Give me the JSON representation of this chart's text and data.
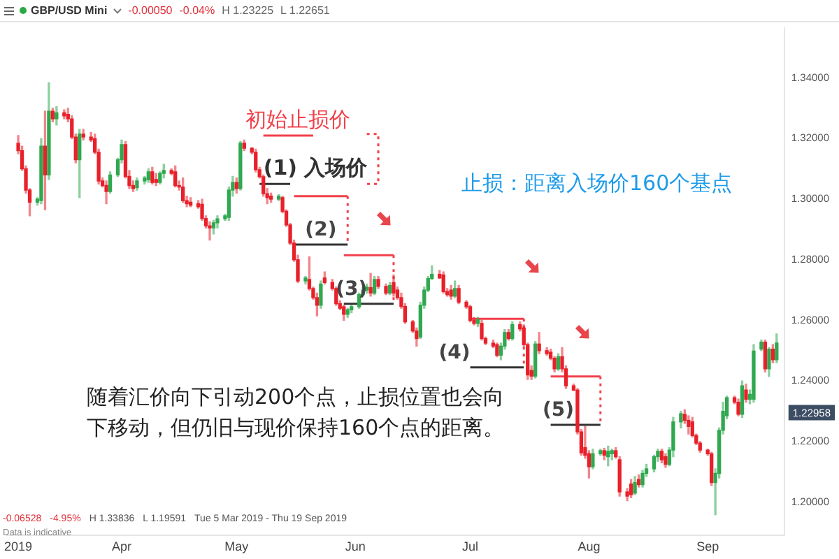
{
  "chart_data": {
    "type": "candlestick",
    "title": "GBP/USD Mini",
    "annotations": [
      {
        "text": "初始止损价",
        "x": "2019-05-17",
        "y": 1.321
      },
      {
        "text": "(1) 入场价",
        "x": "2019-05-08",
        "y": 1.305
      },
      {
        "text": "(2)",
        "x": "2019-05-23",
        "y": 1.285
      },
      {
        "text": "(3)",
        "x": "2019-05-31",
        "y": 1.2655
      },
      {
        "text": "(4)",
        "x": "2019-07-01",
        "y": 1.2445
      },
      {
        "text": "(5)",
        "x": "2019-07-24",
        "y": 1.2255
      },
      {
        "text": "1.22958",
        "y": 1.22958
      },
      "止损：距离入场价160个基点",
      "随着汇价向下引动200个点，止损位置也会向下移动，但仍旧与现价保持160个点的距离。",
      "-0.00050",
      "-0.04%",
      "H 1.23225",
      "L 1.22651",
      "-0.06528",
      "-4.95%",
      "H 1.33836",
      "L 1.19591",
      "Tue 5 Mar 2019 - Thu 19 Sep 2019",
      "Data is indicative"
    ],
    "xlim": [
      "2019-03-02",
      "2019-09-21"
    ],
    "xticks": [
      {
        "value": "2019-03-05",
        "label": "2019"
      },
      {
        "value": "2019-04-01",
        "label": "Apr"
      },
      {
        "value": "2019-05-01",
        "label": "May"
      },
      {
        "value": "2019-06-01",
        "label": "Jun"
      },
      {
        "value": "2019-07-01",
        "label": "Jul"
      },
      {
        "value": "2019-08-01",
        "label": "Aug"
      },
      {
        "value": "2019-09-01",
        "label": "Sep"
      }
    ],
    "ylim": [
      1.189,
      1.3565
    ],
    "yticks": [
      {
        "value": 1.2,
        "label": "1.20000"
      },
      {
        "value": 1.22,
        "label": "1.22000"
      },
      {
        "value": 1.24,
        "label": "1.24000"
      },
      {
        "value": 1.26,
        "label": "1.26000"
      },
      {
        "value": 1.28,
        "label": "1.28000"
      },
      {
        "value": 1.3,
        "label": "1.30000"
      },
      {
        "value": 1.32,
        "label": "1.32000"
      },
      {
        "value": 1.34,
        "label": "1.34000"
      }
    ],
    "x": [
      "2019-03-05",
      "2019-03-06",
      "2019-03-07",
      "2019-03-08",
      "2019-03-10",
      "2019-03-11",
      "2019-03-12",
      "2019-03-13",
      "2019-03-14",
      "2019-03-15",
      "2019-03-17",
      "2019-03-18",
      "2019-03-19",
      "2019-03-20",
      "2019-03-21",
      "2019-03-22",
      "2019-03-24",
      "2019-03-25",
      "2019-03-26",
      "2019-03-27",
      "2019-03-28",
      "2019-03-29",
      "2019-03-31",
      "2019-04-01",
      "2019-04-02",
      "2019-04-03",
      "2019-04-04",
      "2019-04-05",
      "2019-04-07",
      "2019-04-08",
      "2019-04-09",
      "2019-04-10",
      "2019-04-11",
      "2019-04-12",
      "2019-04-14",
      "2019-04-15",
      "2019-04-16",
      "2019-04-17",
      "2019-04-18",
      "2019-04-19",
      "2019-04-21",
      "2019-04-22",
      "2019-04-23",
      "2019-04-24",
      "2019-04-25",
      "2019-04-26",
      "2019-04-28",
      "2019-04-29",
      "2019-04-30",
      "2019-05-01",
      "2019-05-02",
      "2019-05-03",
      "2019-05-05",
      "2019-05-06",
      "2019-05-07",
      "2019-05-08",
      "2019-05-09",
      "2019-05-10",
      "2019-05-12",
      "2019-05-13",
      "2019-05-14",
      "2019-05-15",
      "2019-05-16",
      "2019-05-17",
      "2019-05-19",
      "2019-05-20",
      "2019-05-21",
      "2019-05-22",
      "2019-05-23",
      "2019-05-24",
      "2019-05-26",
      "2019-05-27",
      "2019-05-28",
      "2019-05-29",
      "2019-05-30",
      "2019-05-31",
      "2019-06-02",
      "2019-06-03",
      "2019-06-04",
      "2019-06-05",
      "2019-06-06",
      "2019-06-07",
      "2019-06-09",
      "2019-06-10",
      "2019-06-11",
      "2019-06-12",
      "2019-06-13",
      "2019-06-14",
      "2019-06-16",
      "2019-06-17",
      "2019-06-18",
      "2019-06-19",
      "2019-06-20",
      "2019-06-21",
      "2019-06-23",
      "2019-06-24",
      "2019-06-25",
      "2019-06-26",
      "2019-06-27",
      "2019-06-28",
      "2019-06-30",
      "2019-07-01",
      "2019-07-02",
      "2019-07-03",
      "2019-07-04",
      "2019-07-05",
      "2019-07-07",
      "2019-07-08",
      "2019-07-09",
      "2019-07-10",
      "2019-07-11",
      "2019-07-12",
      "2019-07-14",
      "2019-07-15",
      "2019-07-16",
      "2019-07-17",
      "2019-07-18",
      "2019-07-19",
      "2019-07-21",
      "2019-07-22",
      "2019-07-23",
      "2019-07-24",
      "2019-07-25",
      "2019-07-26",
      "2019-07-28",
      "2019-07-29",
      "2019-07-30",
      "2019-07-31",
      "2019-08-01",
      "2019-08-02",
      "2019-08-04",
      "2019-08-05",
      "2019-08-06",
      "2019-08-07",
      "2019-08-08",
      "2019-08-09",
      "2019-08-11",
      "2019-08-12",
      "2019-08-13",
      "2019-08-14",
      "2019-08-15",
      "2019-08-16",
      "2019-08-18",
      "2019-08-19",
      "2019-08-20",
      "2019-08-21",
      "2019-08-22",
      "2019-08-23",
      "2019-08-25",
      "2019-08-26",
      "2019-08-27",
      "2019-08-28",
      "2019-08-29",
      "2019-08-30",
      "2019-09-01",
      "2019-09-02",
      "2019-09-03",
      "2019-09-04",
      "2019-09-05",
      "2019-09-06",
      "2019-09-08",
      "2019-09-09",
      "2019-09-10",
      "2019-09-11",
      "2019-09-12",
      "2019-09-13",
      "2019-09-15",
      "2019-09-16",
      "2019-09-17",
      "2019-09-18",
      "2019-09-19"
    ],
    "ohlc": [
      [
        1.3184,
        1.321,
        1.315,
        1.316
      ],
      [
        1.316,
        1.3175,
        1.3095,
        1.31
      ],
      [
        1.31,
        1.311,
        1.302,
        1.303
      ],
      [
        1.303,
        1.3035,
        1.2945,
        1.299
      ],
      [
        1.299,
        1.3005,
        1.298,
        1.3
      ],
      [
        1.2995,
        1.32,
        1.2985,
        1.3175
      ],
      [
        1.3175,
        1.329,
        1.2965,
        1.308
      ],
      [
        1.308,
        1.3384,
        1.3065,
        1.329
      ],
      [
        1.329,
        1.33,
        1.3255,
        1.3265
      ],
      [
        1.3265,
        1.3305,
        1.3245,
        1.3285
      ],
      [
        1.3285,
        1.3295,
        1.3265,
        1.3275
      ],
      [
        1.328,
        1.33,
        1.3255,
        1.3265
      ],
      [
        1.3265,
        1.3275,
        1.32,
        1.3205
      ],
      [
        1.3205,
        1.3215,
        1.312,
        1.313
      ],
      [
        1.313,
        1.323,
        1.3005,
        1.3215
      ],
      [
        1.3215,
        1.323,
        1.3195,
        1.3205
      ],
      [
        1.3205,
        1.322,
        1.319,
        1.3195
      ],
      [
        1.32,
        1.3215,
        1.315,
        1.3155
      ],
      [
        1.3155,
        1.3165,
        1.305,
        1.306
      ],
      [
        1.306,
        1.307,
        1.304,
        1.3045
      ],
      [
        1.3045,
        1.306,
        1.2985,
        1.3025
      ],
      [
        1.3025,
        1.309,
        1.302,
        1.308
      ],
      [
        1.308,
        1.3135,
        1.3075,
        1.313
      ],
      [
        1.313,
        1.3195,
        1.312,
        1.318
      ],
      [
        1.318,
        1.319,
        1.307,
        1.3075
      ],
      [
        1.3075,
        1.3095,
        1.3035,
        1.3045
      ],
      [
        1.3045,
        1.306,
        1.3025,
        1.3035
      ],
      [
        1.3038,
        1.307,
        1.303,
        1.306
      ],
      [
        1.306,
        1.3075,
        1.305,
        1.307
      ],
      [
        1.3064,
        1.31,
        1.3055,
        1.309
      ],
      [
        1.309,
        1.3105,
        1.305,
        1.3055
      ],
      [
        1.3065,
        1.3085,
        1.3045,
        1.3055
      ],
      [
        1.3055,
        1.309,
        1.305,
        1.3085
      ],
      [
        1.3085,
        1.3115,
        1.307,
        1.3095
      ],
      [
        1.3095,
        1.31,
        1.308,
        1.3085
      ],
      [
        1.309,
        1.311,
        1.304,
        1.3045
      ],
      [
        1.3045,
        1.306,
        1.303,
        1.304
      ],
      [
        1.304,
        1.307,
        1.299,
        1.2995
      ],
      [
        1.2995,
        1.301,
        1.2975,
        1.2985
      ],
      [
        1.299,
        1.3005,
        1.2975,
        1.298
      ],
      [
        1.2985,
        1.2995,
        1.297,
        1.2975
      ],
      [
        1.2983,
        1.3,
        1.293,
        1.2936
      ],
      [
        1.2936,
        1.2945,
        1.2905,
        1.2912
      ],
      [
        1.2912,
        1.2925,
        1.2865,
        1.2905
      ],
      [
        1.2905,
        1.293,
        1.2885,
        1.2922
      ],
      [
        1.2922,
        1.2945,
        1.2905,
        1.2935
      ],
      [
        1.2935,
        1.295,
        1.293,
        1.2945
      ],
      [
        1.294,
        1.304,
        1.293,
        1.303
      ],
      [
        1.303,
        1.3075,
        1.301,
        1.3055
      ],
      [
        1.3055,
        1.307,
        1.302,
        1.3035
      ],
      [
        1.3035,
        1.319,
        1.303,
        1.3185
      ],
      [
        1.3185,
        1.3195,
        1.316,
        1.3168
      ],
      [
        1.3168,
        1.317,
        1.315,
        1.3155
      ],
      [
        1.3155,
        1.3165,
        1.309,
        1.3097
      ],
      [
        1.3097,
        1.3105,
        1.307,
        1.3074
      ],
      [
        1.3074,
        1.308,
        1.301,
        1.3018
      ],
      [
        1.3018,
        1.3035,
        1.2985,
        1.3005
      ],
      [
        1.301,
        1.302,
        1.299,
        1.3
      ],
      [
        1.3,
        1.3015,
        1.2995,
        1.301
      ],
      [
        1.3005,
        1.301,
        1.2955,
        1.296
      ],
      [
        1.296,
        1.2965,
        1.291,
        1.2915
      ],
      [
        1.2915,
        1.292,
        1.285,
        1.2855
      ],
      [
        1.2855,
        1.2865,
        1.2795,
        1.28
      ],
      [
        1.28,
        1.2815,
        1.2725,
        1.273
      ],
      [
        1.273,
        1.2745,
        1.272,
        1.274
      ],
      [
        1.2735,
        1.281,
        1.27,
        1.2705
      ],
      [
        1.2705,
        1.271,
        1.267,
        1.2675
      ],
      [
        1.2675,
        1.269,
        1.2615,
        1.265
      ],
      [
        1.265,
        1.273,
        1.264,
        1.272
      ],
      [
        1.274,
        1.276,
        1.272,
        1.2725
      ],
      [
        1.2725,
        1.2735,
        1.27,
        1.2705
      ],
      [
        1.2705,
        1.271,
        1.265,
        1.2655
      ],
      [
        1.2655,
        1.2665,
        1.2635,
        1.264
      ],
      [
        1.2645,
        1.265,
        1.26,
        1.262
      ],
      [
        1.262,
        1.264,
        1.261,
        1.2635
      ],
      [
        1.2635,
        1.265,
        1.2625,
        1.2645
      ],
      [
        1.2645,
        1.269,
        1.264,
        1.2685
      ],
      [
        1.2685,
        1.271,
        1.268,
        1.27
      ],
      [
        1.27,
        1.272,
        1.269,
        1.271
      ],
      [
        1.2708,
        1.2755,
        1.268,
        1.269
      ],
      [
        1.269,
        1.2745,
        1.2685,
        1.2735
      ],
      [
        1.2735,
        1.2745,
        1.2705,
        1.2712
      ],
      [
        1.2712,
        1.272,
        1.2685,
        1.269
      ],
      [
        1.269,
        1.2725,
        1.2685,
        1.2715
      ],
      [
        1.2725,
        1.275,
        1.268,
        1.269
      ],
      [
        1.27,
        1.271,
        1.267,
        1.2675
      ],
      [
        1.2675,
        1.269,
        1.264,
        1.2646
      ],
      [
        1.2646,
        1.2655,
        1.259,
        1.2595
      ],
      [
        1.2595,
        1.26,
        1.256,
        1.2565
      ],
      [
        1.2565,
        1.2575,
        1.2515,
        1.254
      ],
      [
        1.2545,
        1.266,
        1.254,
        1.265
      ],
      [
        1.265,
        1.271,
        1.264,
        1.27
      ],
      [
        1.27,
        1.2745,
        1.2695,
        1.2738
      ],
      [
        1.2738,
        1.278,
        1.2735,
        1.2752
      ],
      [
        1.2752,
        1.2765,
        1.2738,
        1.274
      ],
      [
        1.275,
        1.276,
        1.269,
        1.2695
      ],
      [
        1.2695,
        1.2705,
        1.268,
        1.2685
      ],
      [
        1.27,
        1.2715,
        1.267,
        1.268
      ],
      [
        1.268,
        1.273,
        1.2675,
        1.2705
      ],
      [
        1.2705,
        1.2715,
        1.2655,
        1.266
      ],
      [
        1.266,
        1.2665,
        1.264,
        1.2645
      ],
      [
        1.2645,
        1.265,
        1.2595,
        1.26
      ],
      [
        1.26,
        1.261,
        1.2585,
        1.259
      ],
      [
        1.259,
        1.261,
        1.258,
        1.2602
      ],
      [
        1.259,
        1.26,
        1.2535,
        1.254
      ],
      [
        1.254,
        1.2545,
        1.252,
        1.2525
      ],
      [
        1.2525,
        1.2535,
        1.251,
        1.2515
      ],
      [
        1.252,
        1.2525,
        1.248,
        1.2485
      ],
      [
        1.2485,
        1.2525,
        1.247,
        1.2515
      ],
      [
        1.2515,
        1.257,
        1.2505,
        1.256
      ],
      [
        1.256,
        1.257,
        1.2535,
        1.254
      ],
      [
        1.254,
        1.2595,
        1.2535,
        1.2586
      ],
      [
        1.2586,
        1.2595,
        1.2565,
        1.2572
      ],
      [
        1.2575,
        1.2585,
        1.2515,
        1.252
      ],
      [
        1.252,
        1.2525,
        1.2405,
        1.242
      ],
      [
        1.2435,
        1.245,
        1.2405,
        1.2416
      ],
      [
        1.2416,
        1.253,
        1.241,
        1.2522
      ],
      [
        1.2522,
        1.256,
        1.249,
        1.25
      ],
      [
        1.25,
        1.251,
        1.2485,
        1.249
      ],
      [
        1.2495,
        1.2505,
        1.247,
        1.2475
      ],
      [
        1.2475,
        1.248,
        1.243,
        1.244
      ],
      [
        1.244,
        1.249,
        1.2435,
        1.248
      ],
      [
        1.248,
        1.251,
        1.243,
        1.244
      ],
      [
        1.244,
        1.245,
        1.2375,
        1.2384
      ],
      [
        1.2384,
        1.239,
        1.2368,
        1.237
      ],
      [
        1.237,
        1.2375,
        1.2225,
        1.2232
      ],
      [
        1.2232,
        1.224,
        1.2155,
        1.2163
      ],
      [
        1.218,
        1.225,
        1.2145,
        1.2155
      ],
      [
        1.216,
        1.217,
        1.208,
        1.2117
      ],
      [
        1.2117,
        1.2175,
        1.211,
        1.216
      ],
      [
        1.216,
        1.2175,
        1.2155,
        1.217
      ],
      [
        1.217,
        1.2178,
        1.214,
        1.2155
      ],
      [
        1.215,
        1.2185,
        1.212,
        1.2168
      ],
      [
        1.216,
        1.2175,
        1.214,
        1.217
      ],
      [
        1.217,
        1.218,
        1.2145,
        1.215
      ],
      [
        1.214,
        1.215,
        1.202,
        1.2034
      ],
      [
        1.2034,
        1.2045,
        1.2005,
        1.202
      ],
      [
        1.206,
        1.2075,
        1.2015,
        1.2025
      ],
      [
        1.203,
        1.2085,
        1.2025,
        1.2065
      ],
      [
        1.2075,
        1.209,
        1.205,
        1.2058
      ],
      [
        1.2058,
        1.2105,
        1.205,
        1.2095
      ],
      [
        1.2095,
        1.2125,
        1.2085,
        1.211
      ],
      [
        1.211,
        1.2155,
        1.21,
        1.215
      ],
      [
        1.215,
        1.2175,
        1.2135,
        1.2168
      ],
      [
        1.2168,
        1.2175,
        1.213,
        1.214
      ],
      [
        1.215,
        1.216,
        1.2115,
        1.2125
      ],
      [
        1.2125,
        1.218,
        1.212,
        1.2172
      ],
      [
        1.2172,
        1.228,
        1.215,
        1.2265
      ],
      [
        1.2265,
        1.23,
        1.2245,
        1.2292
      ],
      [
        1.229,
        1.2305,
        1.226,
        1.227
      ],
      [
        1.227,
        1.2285,
        1.2225,
        1.225
      ],
      [
        1.2265,
        1.228,
        1.2215,
        1.222
      ],
      [
        1.222,
        1.2225,
        1.219,
        1.2195
      ],
      [
        1.2195,
        1.22,
        1.2165,
        1.2172
      ],
      [
        1.2172,
        1.2175,
        1.2155,
        1.216
      ],
      [
        1.216,
        1.2165,
        1.2055,
        1.2065
      ],
      [
        1.2065,
        1.211,
        1.1959,
        1.2095
      ],
      [
        1.2095,
        1.2245,
        1.208,
        1.2237
      ],
      [
        1.2237,
        1.233,
        1.2225,
        1.23
      ],
      [
        1.2285,
        1.235,
        1.2275,
        1.2345
      ],
      [
        1.2345,
        1.235,
        1.2325,
        1.233
      ],
      [
        1.233,
        1.234,
        1.2285,
        1.229
      ],
      [
        1.229,
        1.24,
        1.228,
        1.2384
      ],
      [
        1.237,
        1.239,
        1.233,
        1.234
      ],
      [
        1.234,
        1.237,
        1.2325,
        1.2356
      ],
      [
        1.234,
        1.252,
        1.233,
        1.2499
      ],
      [
        1.2505,
        1.2535,
        1.25,
        1.2528
      ],
      [
        1.2528,
        1.2535,
        1.243,
        1.244
      ],
      [
        1.244,
        1.251,
        1.2415,
        1.2505
      ],
      [
        1.2505,
        1.252,
        1.246,
        1.247
      ],
      [
        1.247,
        1.2555,
        1.246,
        1.2525
      ]
    ],
    "colors": [
      "#e8202a",
      "#e8202a",
      "#e8202a",
      "#e8202a",
      "#2fa84f",
      "#2fa84f",
      "#e8202a",
      "#2fa84f",
      "#e8202a",
      "#2fa84f",
      "#e8202a",
      "#e8202a",
      "#e8202a",
      "#e8202a",
      "#2fa84f",
      "#e8202a",
      "#e8202a",
      "#e8202a",
      "#e8202a",
      "#e8202a",
      "#e8202a",
      "#2fa84f",
      "#2fa84f",
      "#2fa84f",
      "#e8202a",
      "#e8202a",
      "#e8202a",
      "#2fa84f",
      "#2fa84f",
      "#2fa84f",
      "#e8202a",
      "#e8202a",
      "#2fa84f",
      "#2fa84f",
      "#e8202a",
      "#e8202a",
      "#e8202a",
      "#e8202a",
      "#e8202a",
      "#e8202a",
      "#e8202a",
      "#e8202a",
      "#e8202a",
      "#e8202a",
      "#2fa84f",
      "#2fa84f",
      "#2fa84f",
      "#2fa84f",
      "#2fa84f",
      "#e8202a",
      "#2fa84f",
      "#e8202a",
      "#e8202a",
      "#e8202a",
      "#e8202a",
      "#e8202a",
      "#e8202a",
      "#e8202a",
      "#2fa84f",
      "#e8202a",
      "#e8202a",
      "#e8202a",
      "#e8202a",
      "#e8202a",
      "#2fa84f",
      "#e8202a",
      "#e8202a",
      "#e8202a",
      "#2fa84f",
      "#e8202a",
      "#e8202a",
      "#e8202a",
      "#e8202a",
      "#e8202a",
      "#2fa84f",
      "#2fa84f",
      "#2fa84f",
      "#2fa84f",
      "#2fa84f",
      "#e8202a",
      "#2fa84f",
      "#e8202a",
      "#e8202a",
      "#2fa84f",
      "#e8202a",
      "#e8202a",
      "#e8202a",
      "#e8202a",
      "#e8202a",
      "#e8202a",
      "#2fa84f",
      "#2fa84f",
      "#2fa84f",
      "#2fa84f",
      "#e8202a",
      "#e8202a",
      "#e8202a",
      "#e8202a",
      "#2fa84f",
      "#e8202a",
      "#e8202a",
      "#e8202a",
      "#e8202a",
      "#2fa84f",
      "#e8202a",
      "#e8202a",
      "#e8202a",
      "#e8202a",
      "#2fa84f",
      "#2fa84f",
      "#e8202a",
      "#2fa84f",
      "#e8202a",
      "#e8202a",
      "#e8202a",
      "#e8202a",
      "#2fa84f",
      "#e8202a",
      "#e8202a",
      "#e8202a",
      "#e8202a",
      "#2fa84f",
      "#e8202a",
      "#e8202a",
      "#e8202a",
      "#e8202a",
      "#e8202a",
      "#e8202a",
      "#e8202a",
      "#2fa84f",
      "#2fa84f",
      "#e8202a",
      "#2fa84f",
      "#2fa84f",
      "#e8202a",
      "#e8202a",
      "#e8202a",
      "#e8202a",
      "#2fa84f",
      "#e8202a",
      "#2fa84f",
      "#2fa84f",
      "#2fa84f",
      "#2fa84f",
      "#e8202a",
      "#e8202a",
      "#2fa84f",
      "#2fa84f",
      "#2fa84f",
      "#e8202a",
      "#e8202a",
      "#e8202a",
      "#e8202a",
      "#e8202a",
      "#e8202a",
      "#e8202a",
      "#2fa84f",
      "#2fa84f",
      "#2fa84f",
      "#2fa84f",
      "#e8202a",
      "#e8202a",
      "#2fa84f",
      "#e8202a",
      "#2fa84f",
      "#2fa84f",
      "#2fa84f",
      "#e8202a",
      "#2fa84f",
      "#e8202a",
      "#2fa84f"
    ],
    "series": [
      {
        "type": "line",
        "color": "#f2404a",
        "x": [
          "2019-05-08",
          "2019-05-21"
        ],
        "values": [
          1.321,
          1.321
        ]
      },
      {
        "type": "line",
        "color": "#f2404a",
        "line_style": "dotted",
        "x": [
          "2019-06-04",
          "2019-06-07",
          "2019-06-07",
          "2019-06-04"
        ],
        "values": [
          1.3215,
          1.3215,
          1.305,
          1.305
        ]
      },
      {
        "type": "line",
        "color": "#333333",
        "x": [
          "2019-05-07",
          "2019-05-15"
        ],
        "values": [
          1.305,
          1.305
        ]
      },
      {
        "type": "line",
        "color": "#f2404a",
        "x": [
          "2019-05-16",
          "2019-05-30"
        ],
        "values": [
          1.301,
          1.301
        ]
      },
      {
        "type": "line",
        "color": "#f2404a",
        "line_style": "dotted",
        "x": [
          "2019-05-30",
          "2019-05-30"
        ],
        "values": [
          1.301,
          1.285
        ]
      },
      {
        "type": "line",
        "color": "#333333",
        "x": [
          "2019-05-16",
          "2019-05-30"
        ],
        "values": [
          1.285,
          1.285
        ]
      },
      {
        "type": "line",
        "color": "#f2404a",
        "x": [
          "2019-05-29",
          "2019-06-11"
        ],
        "values": [
          1.2815,
          1.2815
        ]
      },
      {
        "type": "line",
        "color": "#f2404a",
        "line_style": "dotted",
        "x": [
          "2019-06-11",
          "2019-06-11"
        ],
        "values": [
          1.2815,
          1.2655
        ]
      },
      {
        "type": "line",
        "color": "#333333",
        "x": [
          "2019-05-29",
          "2019-06-11"
        ],
        "values": [
          1.2655,
          1.2655
        ]
      },
      {
        "type": "line",
        "color": "#f2404a",
        "x": [
          "2019-07-01",
          "2019-07-15"
        ],
        "values": [
          1.2605,
          1.2605
        ]
      },
      {
        "type": "line",
        "color": "#f2404a",
        "line_style": "dotted",
        "x": [
          "2019-07-15",
          "2019-07-15"
        ],
        "values": [
          1.2605,
          1.2445
        ]
      },
      {
        "type": "line",
        "color": "#333333",
        "x": [
          "2019-07-01",
          "2019-07-15"
        ],
        "values": [
          1.2445,
          1.2445
        ]
      },
      {
        "type": "line",
        "color": "#f2404a",
        "x": [
          "2019-07-22",
          "2019-08-04"
        ],
        "values": [
          1.2415,
          1.2415
        ]
      },
      {
        "type": "line",
        "color": "#f2404a",
        "line_style": "dotted",
        "x": [
          "2019-08-04",
          "2019-08-04"
        ],
        "values": [
          1.2415,
          1.2255
        ]
      },
      {
        "type": "line",
        "color": "#333333",
        "x": [
          "2019-07-22",
          "2019-08-04"
        ],
        "values": [
          1.2255,
          1.2255
        ]
      }
    ]
  }
}
